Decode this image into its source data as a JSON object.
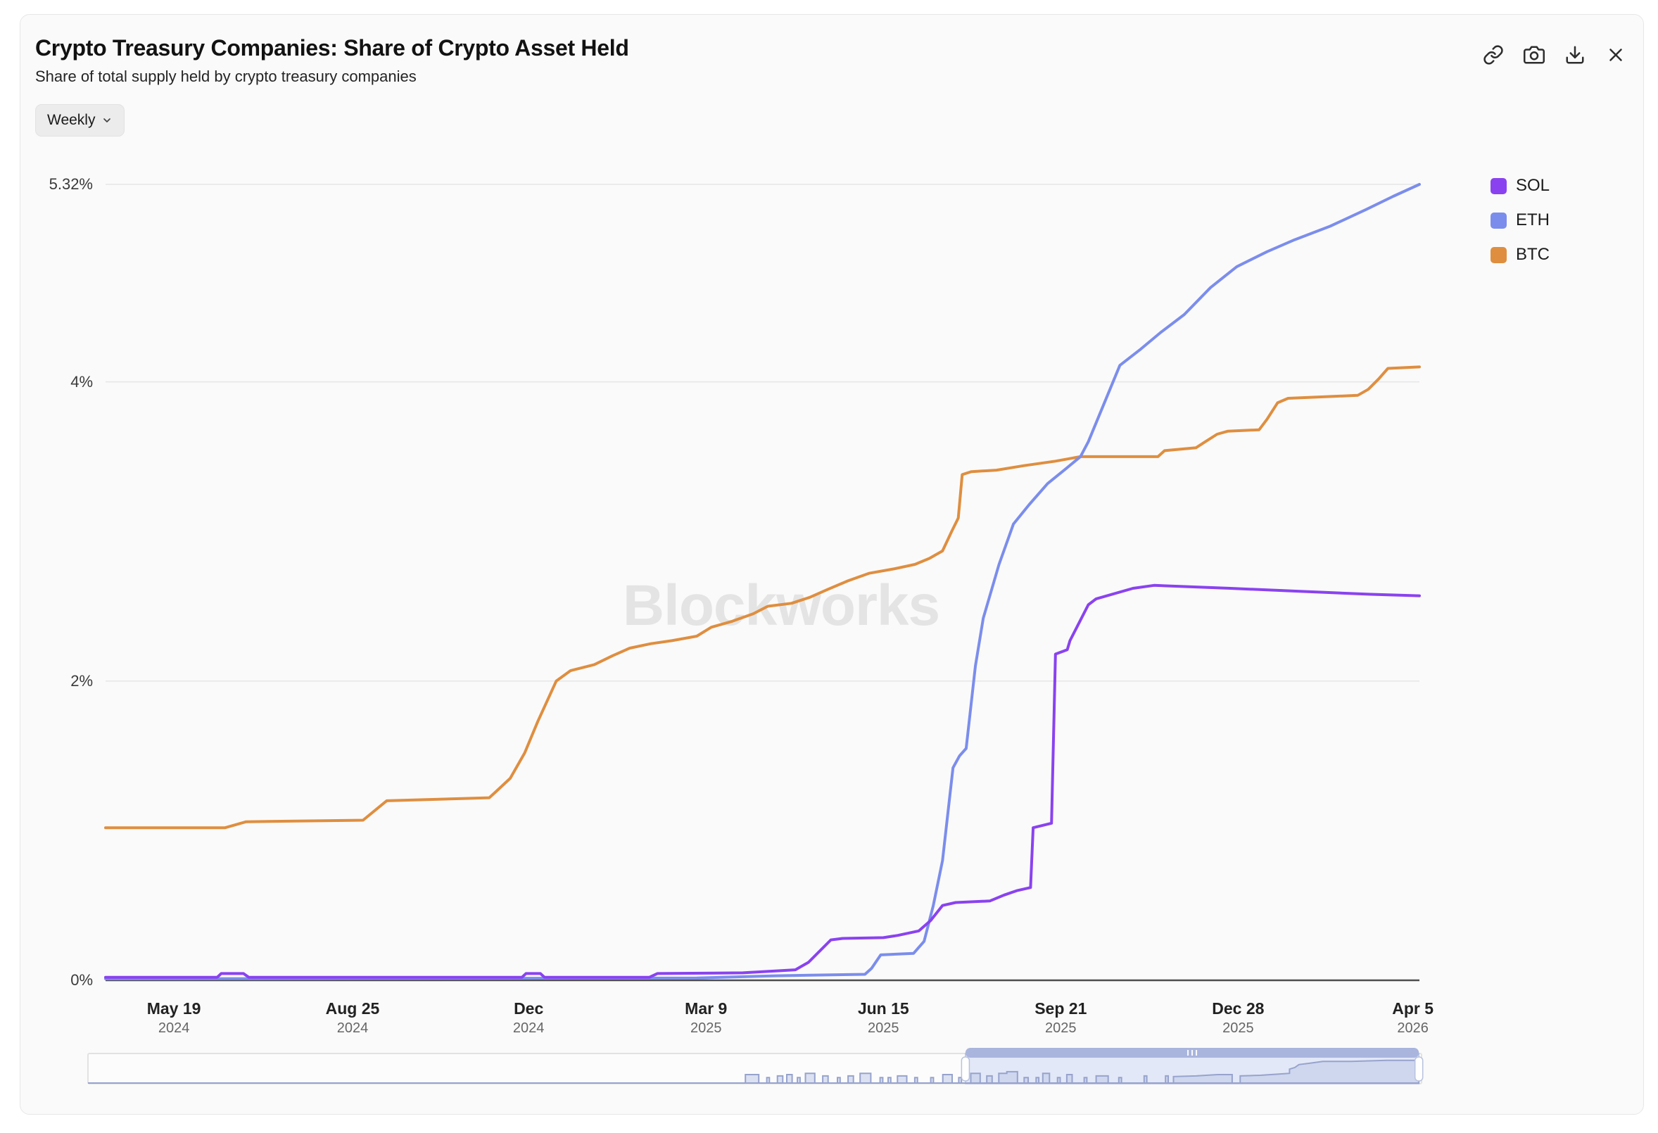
{
  "header": {
    "title": "Crypto Treasury Companies: Share of Crypto Asset Held",
    "subtitle": "Share of total supply held by crypto treasury companies",
    "frequency_label": "Weekly"
  },
  "toolbar": {
    "icons": [
      "link-icon",
      "camera-icon",
      "download-icon",
      "close-icon"
    ]
  },
  "legend": [
    {
      "label": "SOL",
      "color": "#8a42f0"
    },
    {
      "label": "ETH",
      "color": "#7b8dec"
    },
    {
      "label": "BTC",
      "color": "#df8e3f"
    }
  ],
  "watermark": "Blockworks",
  "chart_data": {
    "type": "line",
    "title": "Crypto Treasury Companies: Share of Crypto Asset Held",
    "subtitle": "Share of total supply held by crypto treasury companies",
    "frequency": "Weekly",
    "grid": true,
    "legend_position": "right",
    "y_axis": {
      "max": 5.32,
      "ticks": [
        {
          "label": "0%",
          "value": 0
        },
        {
          "label": "2%",
          "value": 2
        },
        {
          "label": "4%",
          "value": 4
        },
        {
          "label": "5.32%",
          "value": 5.32
        }
      ]
    },
    "x_axis": {
      "ticks": [
        {
          "label": "May 19",
          "year": "2024",
          "t": 0.052
        },
        {
          "label": "Aug 25",
          "year": "2024",
          "t": 0.188
        },
        {
          "label": "Dec",
          "year": "2024",
          "t": 0.322
        },
        {
          "label": "Mar 9",
          "year": "2025",
          "t": 0.457
        },
        {
          "label": "Jun 15",
          "year": "2025",
          "t": 0.592
        },
        {
          "label": "Sep 21",
          "year": "2025",
          "t": 0.727
        },
        {
          "label": "Dec 28",
          "year": "2025",
          "t": 0.862
        },
        {
          "label": "Apr 5",
          "year": "2026",
          "t": 0.995
        }
      ]
    },
    "series": [
      {
        "name": "BTC",
        "color": "#df8e3f",
        "points": [
          [
            0,
            1.02
          ],
          [
            0.091,
            1.02
          ],
          [
            0.107,
            1.06
          ],
          [
            0.196,
            1.07
          ],
          [
            0.214,
            1.2
          ],
          [
            0.292,
            1.22
          ],
          [
            0.297,
            1.26
          ],
          [
            0.308,
            1.35
          ],
          [
            0.319,
            1.52
          ],
          [
            0.329,
            1.73
          ],
          [
            0.343,
            2.0
          ],
          [
            0.354,
            2.07
          ],
          [
            0.372,
            2.11
          ],
          [
            0.386,
            2.17
          ],
          [
            0.399,
            2.22
          ],
          [
            0.415,
            2.25
          ],
          [
            0.431,
            2.27
          ],
          [
            0.45,
            2.3
          ],
          [
            0.461,
            2.36
          ],
          [
            0.477,
            2.4
          ],
          [
            0.493,
            2.45
          ],
          [
            0.504,
            2.5
          ],
          [
            0.522,
            2.52
          ],
          [
            0.536,
            2.56
          ],
          [
            0.549,
            2.61
          ],
          [
            0.565,
            2.67
          ],
          [
            0.581,
            2.72
          ],
          [
            0.6,
            2.75
          ],
          [
            0.616,
            2.78
          ],
          [
            0.627,
            2.82
          ],
          [
            0.637,
            2.87
          ],
          [
            0.644,
            3.0
          ],
          [
            0.649,
            3.09
          ],
          [
            0.652,
            3.38
          ],
          [
            0.659,
            3.4
          ],
          [
            0.678,
            3.41
          ],
          [
            0.699,
            3.44
          ],
          [
            0.723,
            3.47
          ],
          [
            0.742,
            3.5
          ],
          [
            0.801,
            3.5
          ],
          [
            0.806,
            3.54
          ],
          [
            0.83,
            3.56
          ],
          [
            0.837,
            3.6
          ],
          [
            0.846,
            3.65
          ],
          [
            0.854,
            3.67
          ],
          [
            0.878,
            3.68
          ],
          [
            0.884,
            3.75
          ],
          [
            0.892,
            3.86
          ],
          [
            0.9,
            3.89
          ],
          [
            0.953,
            3.91
          ],
          [
            0.961,
            3.95
          ],
          [
            0.969,
            4.02
          ],
          [
            0.976,
            4.09
          ],
          [
            1,
            4.1
          ]
        ]
      },
      {
        "name": "ETH",
        "color": "#7b8dec",
        "points": [
          [
            0,
            0.01
          ],
          [
            0.45,
            0.015
          ],
          [
            0.51,
            0.03
          ],
          [
            0.578,
            0.04
          ],
          [
            0.583,
            0.08
          ],
          [
            0.59,
            0.17
          ],
          [
            0.615,
            0.18
          ],
          [
            0.623,
            0.26
          ],
          [
            0.63,
            0.5
          ],
          [
            0.637,
            0.8
          ],
          [
            0.645,
            1.42
          ],
          [
            0.65,
            1.5
          ],
          [
            0.655,
            1.55
          ],
          [
            0.662,
            2.1
          ],
          [
            0.668,
            2.42
          ],
          [
            0.68,
            2.78
          ],
          [
            0.691,
            3.05
          ],
          [
            0.703,
            3.18
          ],
          [
            0.717,
            3.32
          ],
          [
            0.731,
            3.42
          ],
          [
            0.742,
            3.5
          ],
          [
            0.748,
            3.6
          ],
          [
            0.772,
            4.11
          ],
          [
            0.788,
            4.22
          ],
          [
            0.803,
            4.33
          ],
          [
            0.821,
            4.45
          ],
          [
            0.841,
            4.63
          ],
          [
            0.861,
            4.77
          ],
          [
            0.884,
            4.87
          ],
          [
            0.905,
            4.95
          ],
          [
            0.932,
            5.04
          ],
          [
            0.959,
            5.15
          ],
          [
            0.98,
            5.24
          ],
          [
            1,
            5.32
          ]
        ]
      },
      {
        "name": "SOL",
        "color": "#8a42f0",
        "points": [
          [
            0,
            0.02
          ],
          [
            0.085,
            0.02
          ],
          [
            0.088,
            0.045
          ],
          [
            0.105,
            0.045
          ],
          [
            0.109,
            0.02
          ],
          [
            0.317,
            0.02
          ],
          [
            0.32,
            0.045
          ],
          [
            0.331,
            0.045
          ],
          [
            0.334,
            0.02
          ],
          [
            0.414,
            0.02
          ],
          [
            0.42,
            0.045
          ],
          [
            0.485,
            0.05
          ],
          [
            0.525,
            0.07
          ],
          [
            0.535,
            0.12
          ],
          [
            0.552,
            0.27
          ],
          [
            0.561,
            0.28
          ],
          [
            0.592,
            0.285
          ],
          [
            0.603,
            0.3
          ],
          [
            0.619,
            0.33
          ],
          [
            0.628,
            0.4
          ],
          [
            0.637,
            0.5
          ],
          [
            0.647,
            0.52
          ],
          [
            0.673,
            0.53
          ],
          [
            0.684,
            0.57
          ],
          [
            0.694,
            0.6
          ],
          [
            0.704,
            0.62
          ],
          [
            0.706,
            1.02
          ],
          [
            0.72,
            1.05
          ],
          [
            0.723,
            2.18
          ],
          [
            0.732,
            2.21
          ],
          [
            0.734,
            2.27
          ],
          [
            0.748,
            2.51
          ],
          [
            0.754,
            2.55
          ],
          [
            0.782,
            2.62
          ],
          [
            0.798,
            2.64
          ],
          [
            0.856,
            2.62
          ],
          [
            0.909,
            2.6
          ],
          [
            0.963,
            2.58
          ],
          [
            1,
            2.57
          ]
        ]
      }
    ]
  },
  "navigator": {
    "selection": {
      "start": 0.658,
      "end": 0.998
    },
    "series": [
      [
        0,
        0
      ],
      [
        0.493,
        0
      ],
      [
        0.493,
        0.26
      ],
      [
        0.503,
        0.26
      ],
      [
        0.503,
        0
      ],
      [
        0.509,
        0
      ],
      [
        0.509,
        0.17
      ],
      [
        0.511,
        0.17
      ],
      [
        0.511,
        0
      ],
      [
        0.517,
        0
      ],
      [
        0.517,
        0.22
      ],
      [
        0.521,
        0.22
      ],
      [
        0.521,
        0
      ],
      [
        0.524,
        0
      ],
      [
        0.524,
        0.26
      ],
      [
        0.528,
        0.26
      ],
      [
        0.528,
        0
      ],
      [
        0.532,
        0
      ],
      [
        0.532,
        0.17
      ],
      [
        0.534,
        0.17
      ],
      [
        0.534,
        0
      ],
      [
        0.538,
        0
      ],
      [
        0.538,
        0.3
      ],
      [
        0.545,
        0.3
      ],
      [
        0.545,
        0
      ],
      [
        0.551,
        0
      ],
      [
        0.551,
        0.22
      ],
      [
        0.555,
        0.22
      ],
      [
        0.555,
        0
      ],
      [
        0.562,
        0
      ],
      [
        0.562,
        0.17
      ],
      [
        0.564,
        0.17
      ],
      [
        0.564,
        0
      ],
      [
        0.57,
        0
      ],
      [
        0.57,
        0.22
      ],
      [
        0.574,
        0.22
      ],
      [
        0.574,
        0
      ],
      [
        0.579,
        0
      ],
      [
        0.579,
        0.3
      ],
      [
        0.587,
        0.3
      ],
      [
        0.587,
        0
      ],
      [
        0.594,
        0
      ],
      [
        0.594,
        0.17
      ],
      [
        0.596,
        0.17
      ],
      [
        0.596,
        0
      ],
      [
        0.6,
        0
      ],
      [
        0.6,
        0.17
      ],
      [
        0.602,
        0.17
      ],
      [
        0.602,
        0
      ],
      [
        0.607,
        0
      ],
      [
        0.607,
        0.22
      ],
      [
        0.614,
        0.22
      ],
      [
        0.614,
        0
      ],
      [
        0.62,
        0
      ],
      [
        0.62,
        0.17
      ],
      [
        0.622,
        0.17
      ],
      [
        0.622,
        0
      ],
      [
        0.632,
        0
      ],
      [
        0.632,
        0.17
      ],
      [
        0.634,
        0.17
      ],
      [
        0.634,
        0
      ],
      [
        0.641,
        0
      ],
      [
        0.641,
        0.26
      ],
      [
        0.648,
        0.26
      ],
      [
        0.648,
        0
      ],
      [
        0.653,
        0
      ],
      [
        0.653,
        0.17
      ],
      [
        0.655,
        0.17
      ],
      [
        0.655,
        0
      ],
      [
        0.662,
        0
      ],
      [
        0.662,
        0.3
      ],
      [
        0.669,
        0.3
      ],
      [
        0.669,
        0
      ],
      [
        0.674,
        0
      ],
      [
        0.674,
        0.22
      ],
      [
        0.678,
        0.22
      ],
      [
        0.678,
        0
      ],
      [
        0.683,
        0
      ],
      [
        0.683,
        0.3
      ],
      [
        0.689,
        0.3
      ],
      [
        0.689,
        0.35
      ],
      [
        0.697,
        0.35
      ],
      [
        0.697,
        0
      ],
      [
        0.702,
        0
      ],
      [
        0.702,
        0.17
      ],
      [
        0.705,
        0.17
      ],
      [
        0.705,
        0
      ],
      [
        0.711,
        0
      ],
      [
        0.711,
        0.17
      ],
      [
        0.713,
        0.17
      ],
      [
        0.713,
        0
      ],
      [
        0.716,
        0
      ],
      [
        0.716,
        0.3
      ],
      [
        0.721,
        0.3
      ],
      [
        0.721,
        0
      ],
      [
        0.727,
        0
      ],
      [
        0.727,
        0.17
      ],
      [
        0.729,
        0.17
      ],
      [
        0.729,
        0
      ],
      [
        0.734,
        0
      ],
      [
        0.734,
        0.26
      ],
      [
        0.738,
        0.26
      ],
      [
        0.738,
        0
      ],
      [
        0.747,
        0
      ],
      [
        0.747,
        0.17
      ],
      [
        0.749,
        0.17
      ],
      [
        0.749,
        0
      ],
      [
        0.756,
        0
      ],
      [
        0.756,
        0.22
      ],
      [
        0.765,
        0.22
      ],
      [
        0.765,
        0
      ],
      [
        0.773,
        0
      ],
      [
        0.773,
        0.17
      ],
      [
        0.775,
        0.17
      ],
      [
        0.775,
        0
      ],
      [
        0.792,
        0
      ],
      [
        0.792,
        0.22
      ],
      [
        0.794,
        0.22
      ],
      [
        0.794,
        0
      ],
      [
        0.808,
        0
      ],
      [
        0.808,
        0.22
      ],
      [
        0.81,
        0.22
      ],
      [
        0.81,
        0
      ],
      [
        0.814,
        0
      ],
      [
        0.814,
        0.2
      ],
      [
        0.831,
        0.22
      ],
      [
        0.847,
        0.26
      ],
      [
        0.858,
        0.26
      ],
      [
        0.858,
        0
      ],
      [
        0.864,
        0
      ],
      [
        0.864,
        0.22
      ],
      [
        0.879,
        0.24
      ],
      [
        0.894,
        0.28
      ],
      [
        0.901,
        0.3
      ],
      [
        0.901,
        0.43
      ],
      [
        0.905,
        0.48
      ],
      [
        0.908,
        0.57
      ],
      [
        0.916,
        0.61
      ],
      [
        0.926,
        0.67
      ],
      [
        0.947,
        0.67
      ],
      [
        0.974,
        0.7
      ],
      [
        0.998,
        0.7
      ]
    ]
  }
}
